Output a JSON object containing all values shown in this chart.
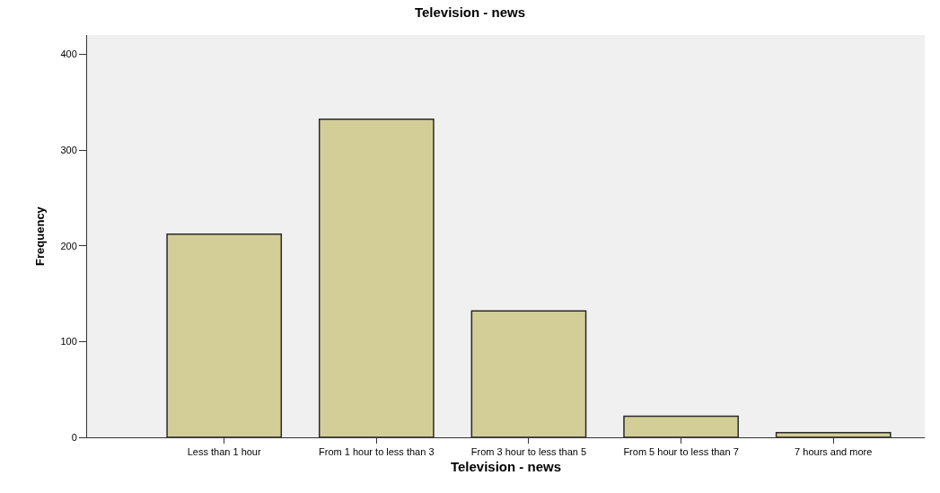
{
  "chart_data": {
    "type": "bar",
    "title": "Television - news",
    "xlabel": "Television - news",
    "ylabel": "Frequency",
    "categories": [
      "Less than 1 hour",
      "From 1 hour to less than 3",
      "From 3 hour to less than 5",
      "From 5 hour to less than 7",
      "7 hours and more"
    ],
    "values": [
      212,
      332,
      132,
      22,
      5
    ],
    "color": "#d3cd98",
    "ylim": [
      0,
      420
    ],
    "yticks": [
      0,
      100,
      200,
      300,
      400
    ]
  }
}
